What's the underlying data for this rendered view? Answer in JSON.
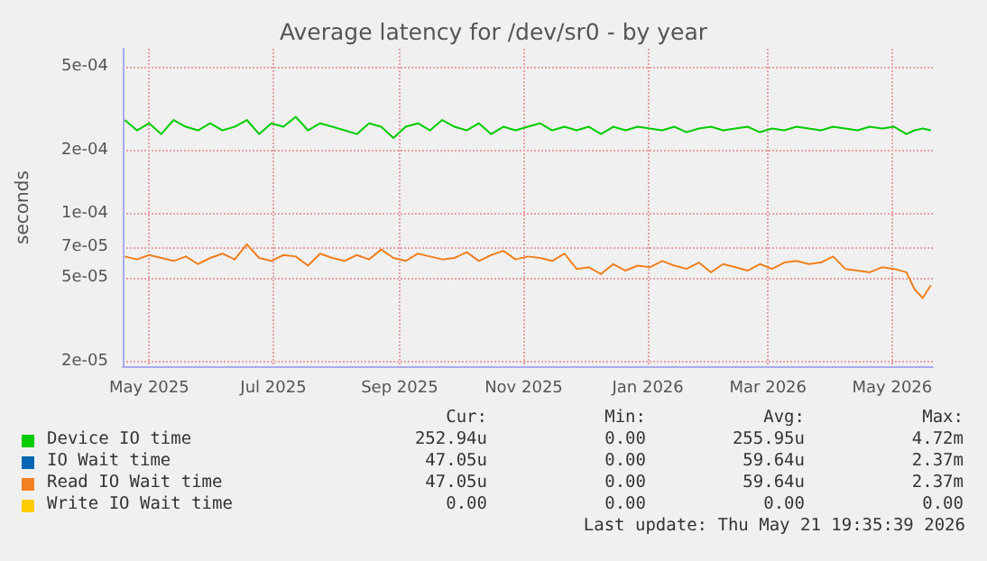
{
  "chart_data": {
    "type": "line",
    "title": "Average latency for /dev/sr0 - by year",
    "ylabel": "seconds",
    "log": "y",
    "grid": true,
    "legend": "bottom",
    "marker": "none",
    "line_style": "solid",
    "x": [
      "2025-04-19",
      "2025-04-25",
      "2025-05-01",
      "2025-05-07",
      "2025-05-13",
      "2025-05-19",
      "2025-05-25",
      "2025-05-31",
      "2025-06-06",
      "2025-06-12",
      "2025-06-18",
      "2025-06-24",
      "2025-06-30",
      "2025-07-06",
      "2025-07-12",
      "2025-07-18",
      "2025-07-24",
      "2025-07-30",
      "2025-08-05",
      "2025-08-11",
      "2025-08-17",
      "2025-08-23",
      "2025-08-29",
      "2025-09-04",
      "2025-09-10",
      "2025-09-16",
      "2025-09-22",
      "2025-09-28",
      "2025-10-04",
      "2025-10-10",
      "2025-10-16",
      "2025-10-22",
      "2025-10-28",
      "2025-11-03",
      "2025-11-09",
      "2025-11-15",
      "2025-11-21",
      "2025-11-27",
      "2025-12-03",
      "2025-12-09",
      "2025-12-15",
      "2025-12-21",
      "2025-12-27",
      "2026-01-02",
      "2026-01-08",
      "2026-01-14",
      "2026-01-20",
      "2026-01-26",
      "2026-02-01",
      "2026-02-07",
      "2026-02-13",
      "2026-02-19",
      "2026-02-25",
      "2026-03-03",
      "2026-03-09",
      "2026-03-15",
      "2026-03-21",
      "2026-03-27",
      "2026-04-02",
      "2026-04-08",
      "2026-04-14",
      "2026-04-20",
      "2026-04-26",
      "2026-05-02",
      "2026-05-08",
      "2026-05-12",
      "2026-05-16",
      "2026-05-20"
    ],
    "xlim": [
      "2025-04-18",
      "2026-05-21"
    ],
    "xticks": [
      {
        "value": "2025-05-01",
        "label": "May 2025"
      },
      {
        "value": "2025-07-01",
        "label": "Jul 2025"
      },
      {
        "value": "2025-09-01",
        "label": "Sep 2025"
      },
      {
        "value": "2025-11-01",
        "label": "Nov 2025"
      },
      {
        "value": "2026-01-01",
        "label": "Jan 2026"
      },
      {
        "value": "2026-03-01",
        "label": "Mar 2026"
      },
      {
        "value": "2026-05-01",
        "label": "May 2026"
      }
    ],
    "ylim": [
      1.9e-05,
      0.00061
    ],
    "yticks": [
      {
        "value": 0.0005,
        "label": "5e-04"
      },
      {
        "value": 0.0002,
        "label": "2e-04"
      },
      {
        "value": 0.0001,
        "label": "1e-04"
      },
      {
        "value": 7e-05,
        "label": "7e-05"
      },
      {
        "value": 5e-05,
        "label": "5e-05"
      },
      {
        "value": 2e-05,
        "label": "2e-05"
      }
    ],
    "series": [
      {
        "name": "Device IO time",
        "color": "#00cc00",
        "values": [
          0.00028,
          0.00025,
          0.00027,
          0.00024,
          0.00028,
          0.00026,
          0.00025,
          0.00027,
          0.00025,
          0.00026,
          0.00028,
          0.00024,
          0.00027,
          0.00026,
          0.00029,
          0.00025,
          0.00027,
          0.00026,
          0.00025,
          0.00024,
          0.00027,
          0.00026,
          0.00023,
          0.00026,
          0.00027,
          0.00025,
          0.00028,
          0.00026,
          0.00025,
          0.00027,
          0.00024,
          0.00026,
          0.00025,
          0.00026,
          0.00027,
          0.00025,
          0.00026,
          0.00025,
          0.00026,
          0.00024,
          0.00026,
          0.00025,
          0.00026,
          0.000255,
          0.00025,
          0.00026,
          0.000245,
          0.000255,
          0.00026,
          0.00025,
          0.000255,
          0.00026,
          0.000245,
          0.000255,
          0.00025,
          0.00026,
          0.000255,
          0.00025,
          0.00026,
          0.000255,
          0.00025,
          0.00026,
          0.000255,
          0.00026,
          0.00024,
          0.00025,
          0.000255,
          0.00025
        ]
      },
      {
        "name": "IO Wait time",
        "color": "#0066b3",
        "values": [
          null,
          null,
          null,
          null,
          null,
          null,
          null,
          null,
          null,
          null,
          null,
          null,
          null,
          null,
          null,
          null,
          null,
          null,
          null,
          null,
          null,
          null,
          null,
          null,
          null,
          null,
          null,
          null,
          null,
          null,
          null,
          null,
          null,
          null,
          null,
          null,
          null,
          null,
          null,
          null,
          null,
          null,
          null,
          null,
          null,
          null,
          null,
          null,
          null,
          null,
          null,
          null,
          null,
          null,
          null,
          null,
          null,
          null,
          null,
          null,
          null,
          null,
          null,
          null,
          null,
          null,
          null,
          null
        ]
      },
      {
        "name": "Read IO Wait time",
        "color": "#f08020",
        "values": [
          6.3e-05,
          6.1e-05,
          6.4e-05,
          6.2e-05,
          6e-05,
          6.3e-05,
          5.8e-05,
          6.2e-05,
          6.5e-05,
          6.1e-05,
          7.2e-05,
          6.2e-05,
          6e-05,
          6.4e-05,
          6.3e-05,
          5.7e-05,
          6.5e-05,
          6.2e-05,
          6e-05,
          6.4e-05,
          6.1e-05,
          6.8e-05,
          6.2e-05,
          6e-05,
          6.5e-05,
          6.3e-05,
          6.1e-05,
          6.2e-05,
          6.6e-05,
          6e-05,
          6.4e-05,
          6.7e-05,
          6.1e-05,
          6.3e-05,
          6.2e-05,
          6e-05,
          6.5e-05,
          5.5e-05,
          5.6e-05,
          5.2e-05,
          5.8e-05,
          5.4e-05,
          5.7e-05,
          5.6e-05,
          6e-05,
          5.7e-05,
          5.5e-05,
          5.9e-05,
          5.3e-05,
          5.8e-05,
          5.6e-05,
          5.4e-05,
          5.8e-05,
          5.5e-05,
          5.9e-05,
          6e-05,
          5.8e-05,
          5.9e-05,
          6.3e-05,
          5.5e-05,
          5.4e-05,
          5.3e-05,
          5.6e-05,
          5.5e-05,
          5.3e-05,
          4.4e-05,
          4e-05,
          4.6e-05
        ]
      },
      {
        "name": "Write IO Wait time",
        "color": "#ffcc00",
        "values": [
          null,
          null,
          null,
          null,
          null,
          null,
          null,
          null,
          null,
          null,
          null,
          null,
          null,
          null,
          null,
          null,
          null,
          null,
          null,
          null,
          null,
          null,
          null,
          null,
          null,
          null,
          null,
          null,
          null,
          null,
          null,
          null,
          null,
          null,
          null,
          null,
          null,
          null,
          null,
          null,
          null,
          null,
          null,
          null,
          null,
          null,
          null,
          null,
          null,
          null,
          null,
          null,
          null,
          null,
          null,
          null,
          null,
          null,
          null,
          null,
          null,
          null,
          null,
          null,
          null,
          null,
          null,
          null
        ]
      }
    ],
    "annotations": [
      "Cur:",
      "Min:",
      "Avg:",
      "Max:",
      "252.94u",
      "0.00",
      "255.95u",
      "4.72m",
      "47.05u",
      "0.00",
      "59.64u",
      "2.37m",
      "47.05u",
      "0.00",
      "59.64u",
      "2.37m",
      "0.00",
      "0.00",
      "0.00",
      "0.00",
      "Last update: Thu May 21 19:35:39 2026"
    ]
  }
}
